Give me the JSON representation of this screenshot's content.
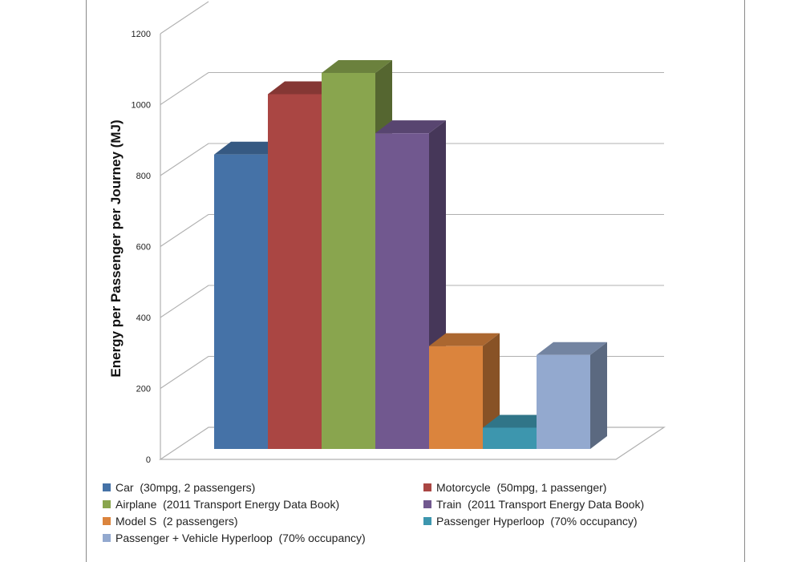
{
  "chart_data": {
    "type": "bar",
    "ylabel": "Energy per Passenger per Journey (MJ)",
    "ylim": [
      0,
      1200
    ],
    "yticks": [
      0,
      200,
      400,
      600,
      800,
      1000,
      1200
    ],
    "grid": true,
    "legend_position": "bottom",
    "series": [
      {
        "name": "Car  (30mpg, 2 passengers)",
        "value": 830,
        "color": "#4572a7"
      },
      {
        "name": "Motorcycle  (50mpg, 1 passenger)",
        "value": 1000,
        "color": "#aa4643"
      },
      {
        "name": "Airplane  (2011 Transport Energy Data Book)",
        "value": 1060,
        "color": "#89a54e"
      },
      {
        "name": "Train  (2011 Transport Energy Data Book)",
        "value": 890,
        "color": "#71588f"
      },
      {
        "name": "Model S  (2 passengers)",
        "value": 290,
        "color": "#db843d"
      },
      {
        "name": "Passenger Hyperloop  (70% occupancy)",
        "value": 60,
        "color": "#3d96ae"
      },
      {
        "name": "Passenger + Vehicle Hyperloop  (70% occupancy)",
        "value": 265,
        "color": "#93a9cf"
      }
    ]
  }
}
